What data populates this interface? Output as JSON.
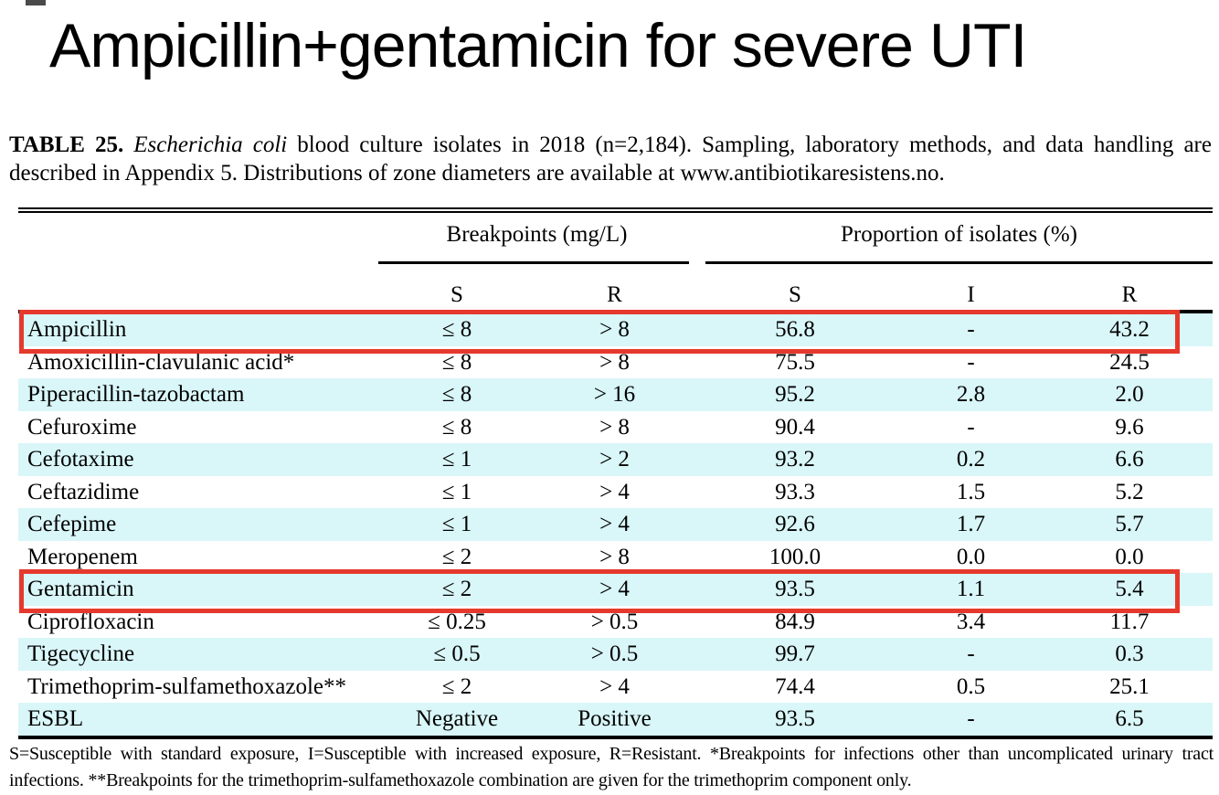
{
  "page": {
    "title": "Ampicillin+gentamicin for severe UTI"
  },
  "table": {
    "caption_label": "TABLE 25.",
    "caption_italic": "Escherichia coli",
    "caption_rest": " blood culture isolates in 2018 (n=2,184). Sampling, laboratory methods, and data handling are described in Appendix 5. Distributions of zone diameters are available at www.antibiotikaresistens.no.",
    "group_headers": {
      "breakpoints": "Breakpoints (mg/L)",
      "proportion": "Proportion of isolates (%)"
    },
    "sub_headers": {
      "bp_s": "S",
      "bp_r": "R",
      "prop_s": "S",
      "prop_i": "I",
      "prop_r": "R"
    },
    "rows": [
      {
        "name": "Ampicillin",
        "bp_s": "≤ 8",
        "bp_r": "> 8",
        "s": "56.8",
        "i": "-",
        "r": "43.2",
        "highlighted": true
      },
      {
        "name": "Amoxicillin-clavulanic acid*",
        "bp_s": "≤ 8",
        "bp_r": "> 8",
        "s": "75.5",
        "i": "-",
        "r": "24.5",
        "highlighted": false
      },
      {
        "name": "Piperacillin-tazobactam",
        "bp_s": "≤ 8",
        "bp_r": "> 16",
        "s": "95.2",
        "i": "2.8",
        "r": "2.0",
        "highlighted": false
      },
      {
        "name": "Cefuroxime",
        "bp_s": "≤ 8",
        "bp_r": "> 8",
        "s": "90.4",
        "i": "-",
        "r": "9.6",
        "highlighted": false
      },
      {
        "name": "Cefotaxime",
        "bp_s": "≤ 1",
        "bp_r": "> 2",
        "s": "93.2",
        "i": "0.2",
        "r": "6.6",
        "highlighted": false
      },
      {
        "name": "Ceftazidime",
        "bp_s": "≤ 1",
        "bp_r": "> 4",
        "s": "93.3",
        "i": "1.5",
        "r": "5.2",
        "highlighted": false
      },
      {
        "name": "Cefepime",
        "bp_s": "≤ 1",
        "bp_r": "> 4",
        "s": "92.6",
        "i": "1.7",
        "r": "5.7",
        "highlighted": false
      },
      {
        "name": "Meropenem",
        "bp_s": "≤ 2",
        "bp_r": "> 8",
        "s": "100.0",
        "i": "0.0",
        "r": "0.0",
        "highlighted": false
      },
      {
        "name": "Gentamicin",
        "bp_s": "≤ 2",
        "bp_r": "> 4",
        "s": "93.5",
        "i": "1.1",
        "r": "5.4",
        "highlighted": true
      },
      {
        "name": "Ciprofloxacin",
        "bp_s": "≤ 0.25",
        "bp_r": "> 0.5",
        "s": "84.9",
        "i": "3.4",
        "r": "11.7",
        "highlighted": false
      },
      {
        "name": "Tigecycline",
        "bp_s": "≤ 0.5",
        "bp_r": "> 0.5",
        "s": "99.7",
        "i": "-",
        "r": "0.3",
        "highlighted": false
      },
      {
        "name": "Trimethoprim-sulfamethoxazole**",
        "bp_s": "≤ 2",
        "bp_r": "> 4",
        "s": "74.4",
        "i": "0.5",
        "r": "25.1",
        "highlighted": false
      },
      {
        "name": "ESBL",
        "bp_s": "Negative",
        "bp_r": "Positive",
        "s": "93.5",
        "i": "-",
        "r": "6.5",
        "highlighted": false
      }
    ],
    "footnote": "S=Susceptible with standard exposure, I=Susceptible with increased exposure, R=Resistant. *Breakpoints for infections other than uncomplicated urinary tract infections. **Breakpoints for the trimethoprim-sulfamethoxazole combination are given for the trimethoprim component only."
  },
  "colors": {
    "row_stripe": "#d9f6f8",
    "highlight_border": "#e6392d",
    "rule": "#000000"
  }
}
